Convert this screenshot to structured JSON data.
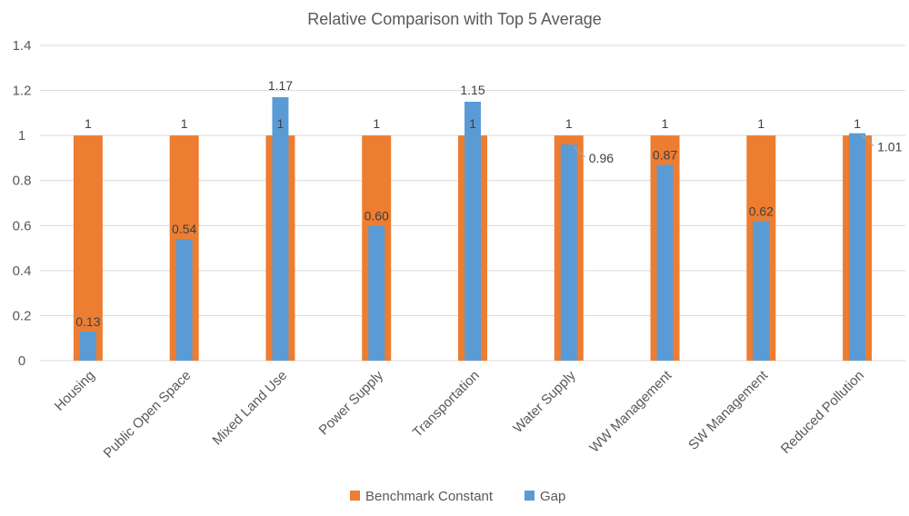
{
  "chart_data": {
    "type": "bar",
    "title": "Relative Comparison with Top 5 Average",
    "xlabel": "",
    "ylabel": "",
    "ylim": [
      0,
      1.4
    ],
    "yticks": [
      "0",
      "0.2",
      "0.4",
      "0.6",
      "0.8",
      "1",
      "1.2",
      "1.4"
    ],
    "categories": [
      "Housing",
      "Public Open Space",
      "Mixed Land Use",
      "Power Supply",
      "Transportation",
      "Water Supply",
      "WW Management",
      "SW Management",
      "Reduced Pollution"
    ],
    "series": [
      {
        "name": "Benchmark Constant",
        "color": "#ed7d31",
        "values": [
          1,
          1,
          1,
          1,
          1,
          1,
          1,
          1,
          1
        ],
        "labels": [
          "1",
          "1",
          "1",
          "1",
          "1",
          "1",
          "1",
          "1",
          "1"
        ]
      },
      {
        "name": "Gap",
        "color": "#5b9bd5",
        "values": [
          0.13,
          0.54,
          1.17,
          0.6,
          1.15,
          0.96,
          0.87,
          0.62,
          1.01
        ],
        "labels": [
          "0.13",
          "0.54",
          "1.17",
          "0.60",
          "1.15",
          "0.96",
          "0.87",
          "0.62",
          "1.01"
        ]
      }
    ],
    "grid": true,
    "legend_position": "bottom"
  }
}
